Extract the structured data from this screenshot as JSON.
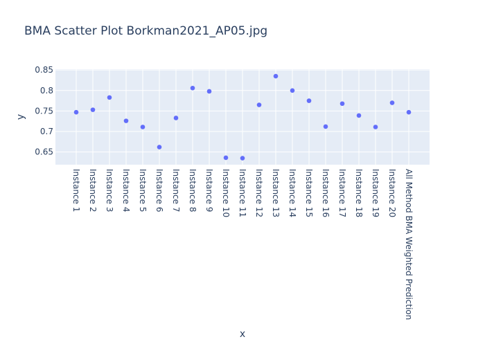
{
  "chart_data": {
    "type": "scatter",
    "title": "BMA Scatter Plot Borkman2021_AP05.jpg",
    "xlabel": "x",
    "ylabel": "y",
    "categories": [
      "Instance 1",
      "Instance 2",
      "Instance 3",
      "Instance 4",
      "Instance 5",
      "Instance 6",
      "Instance 7",
      "Instance 8",
      "Instance 9",
      "Instance 10",
      "Instance 11",
      "Instance 12",
      "Instance 13",
      "Instance 14",
      "Instance 15",
      "Instance 16",
      "Instance 17",
      "Instance 18",
      "Instance 19",
      "Instance 20",
      "All Method BMA Weighted Prediction"
    ],
    "values": [
      0.747,
      0.753,
      0.783,
      0.726,
      0.711,
      0.662,
      0.733,
      0.806,
      0.798,
      0.636,
      0.635,
      0.765,
      0.835,
      0.8,
      0.775,
      0.712,
      0.768,
      0.739,
      0.711,
      0.77,
      0.747
    ],
    "ylim": [
      0.619,
      0.852
    ],
    "yticks": [
      0.65,
      0.7,
      0.75,
      0.8,
      0.85
    ],
    "ytick_labels": [
      "0.65",
      "0.7",
      "0.75",
      "0.8",
      "0.85"
    ],
    "grid": true,
    "colors": {
      "plot_background": "#e5ecf6",
      "grid": "#ffffff",
      "marker": "#636efa",
      "text": "#2a3f5f"
    }
  }
}
